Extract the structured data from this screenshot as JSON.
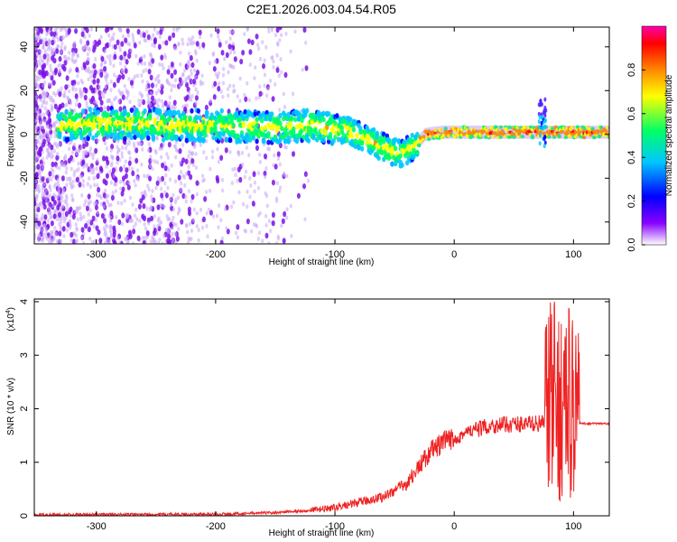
{
  "chart_data": [
    {
      "type": "heatmap",
      "title": "C2E1.2026.003.04.54.R05",
      "xlabel": "Height of straight line (km)",
      "ylabel": "Frequency (Hz)",
      "xlim": [
        -352,
        130
      ],
      "ylim": [
        -50,
        49
      ],
      "x_ticks": [
        -300,
        -200,
        -100,
        0,
        100
      ],
      "y_ticks": [
        -40,
        -20,
        0,
        20,
        40
      ],
      "colorbar": {
        "label": "Normalized spectral amplitude",
        "range": [
          0.0,
          1.0
        ],
        "ticks": [
          "0.0",
          "0.2",
          "0.4",
          "0.6",
          "0.8"
        ],
        "colors": [
          "#ffffff",
          "#8800ff",
          "#0000ff",
          "#00c8ff",
          "#00ff66",
          "#ffff00",
          "#ff8800",
          "#ff0000",
          "#ff00aa"
        ]
      },
      "ridge": [
        {
          "x": -330,
          "freq": 4
        },
        {
          "x": -300,
          "freq": 5
        },
        {
          "x": -270,
          "freq": 5
        },
        {
          "x": -240,
          "freq": 4
        },
        {
          "x": -200,
          "freq": 4
        },
        {
          "x": -160,
          "freq": 3
        },
        {
          "x": -120,
          "freq": 4
        },
        {
          "x": -90,
          "freq": 2
        },
        {
          "x": -70,
          "freq": -3
        },
        {
          "x": -55,
          "freq": -7
        },
        {
          "x": -45,
          "freq": -9
        },
        {
          "x": -35,
          "freq": -6
        },
        {
          "x": -25,
          "freq": 0
        },
        {
          "x": -10,
          "freq": 1
        },
        {
          "x": 10,
          "freq": 1
        },
        {
          "x": 40,
          "freq": 1
        },
        {
          "x": 75,
          "freq": 1
        },
        {
          "x": 100,
          "freq": 1
        },
        {
          "x": 130,
          "freq": 1
        }
      ]
    },
    {
      "type": "line",
      "xlabel": "Height of straight line (km)",
      "ylabel": "SNR (10 * v/v)",
      "y_multiplier": "(x10",
      "y_exponent": "4",
      "xlim": [
        -352,
        130
      ],
      "ylim": [
        0,
        4.05
      ],
      "x_ticks": [
        -300,
        -200,
        -100,
        0,
        100
      ],
      "y_ticks": [
        0,
        1,
        2,
        3,
        4
      ],
      "color": "#ee2222",
      "envelope": [
        {
          "x": -352,
          "y": 0.02
        },
        {
          "x": -200,
          "y": 0.03
        },
        {
          "x": -150,
          "y": 0.06
        },
        {
          "x": -120,
          "y": 0.1
        },
        {
          "x": -100,
          "y": 0.15
        },
        {
          "x": -80,
          "y": 0.25
        },
        {
          "x": -60,
          "y": 0.35
        },
        {
          "x": -40,
          "y": 0.6
        },
        {
          "x": -30,
          "y": 0.9
        },
        {
          "x": -20,
          "y": 1.2
        },
        {
          "x": -10,
          "y": 1.35
        },
        {
          "x": 0,
          "y": 1.45
        },
        {
          "x": 10,
          "y": 1.55
        },
        {
          "x": 20,
          "y": 1.62
        },
        {
          "x": 30,
          "y": 1.68
        },
        {
          "x": 40,
          "y": 1.7
        },
        {
          "x": 60,
          "y": 1.72
        },
        {
          "x": 76,
          "y": 1.73
        },
        {
          "x": 130,
          "y": 1.72
        }
      ]
    }
  ]
}
